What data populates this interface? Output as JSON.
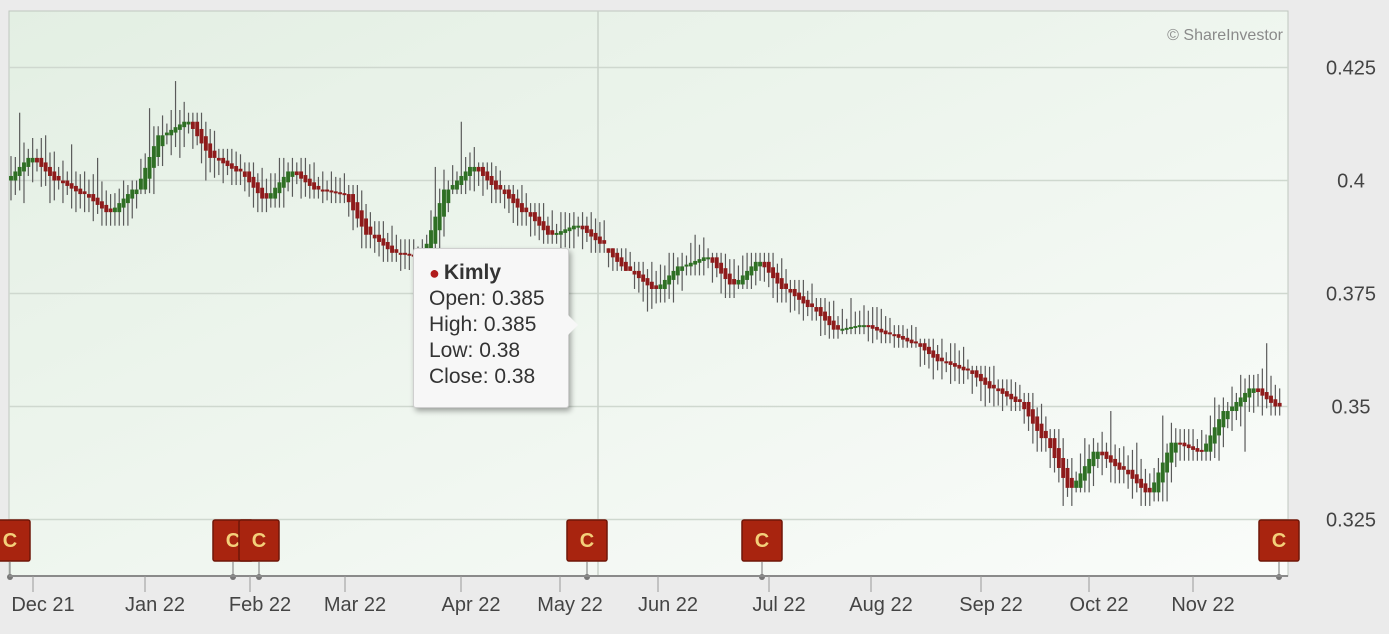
{
  "credit": "© ShareInvestor",
  "colors": {
    "up": "#2f6f24",
    "down": "#8e1b1b",
    "flag_fill": "#a8240f",
    "plot_bg": "#eef5ee"
  },
  "tooltip": {
    "name": "Kimly",
    "open_label": "Open: 0.385",
    "high_label": "High: 0.385",
    "low_label": "Low: 0.38",
    "close_label": "Close: 0.38"
  },
  "event_flags": [
    {
      "label": "C",
      "date": "Nov 21"
    },
    {
      "label": "C",
      "date": "Jan 22"
    },
    {
      "label": "C",
      "date": "Feb 22"
    },
    {
      "label": "C",
      "date": "May 22"
    },
    {
      "label": "C",
      "date": "Jul 22"
    },
    {
      "label": "C",
      "date": "Dec 22"
    }
  ],
  "chart_data": {
    "type": "ohlc",
    "title": "",
    "xlabel": "",
    "ylabel": "",
    "ylim": [
      0.3125,
      0.4375
    ],
    "y_ticks": [
      "0.325",
      "0.35",
      "0.375",
      "0.4",
      "0.425"
    ],
    "x_ticks": [
      "Dec 21",
      "Jan 22",
      "Feb 22",
      "Mar 22",
      "Apr 22",
      "May 22",
      "Jun 22",
      "Jul 22",
      "Aug 22",
      "Sep 22",
      "Oct 22",
      "Nov 22"
    ],
    "grid": true,
    "series": [
      {
        "points": [
          {
            "date": "Dec 21",
            "open": 0.4,
            "high": 0.415,
            "low": 0.395,
            "close": 0.405
          },
          {
            "date": "Dec 21",
            "open": 0.405,
            "high": 0.41,
            "low": 0.395,
            "close": 0.4
          },
          {
            "date": "Dec 21",
            "open": 0.4,
            "high": 0.408,
            "low": 0.393,
            "close": 0.397
          },
          {
            "date": "Jan 22",
            "open": 0.397,
            "high": 0.405,
            "low": 0.39,
            "close": 0.393
          },
          {
            "date": "Jan 22",
            "open": 0.393,
            "high": 0.4,
            "low": 0.39,
            "close": 0.398
          },
          {
            "date": "Jan 22",
            "open": 0.398,
            "high": 0.416,
            "low": 0.397,
            "close": 0.41
          },
          {
            "date": "Jan 22",
            "open": 0.41,
            "high": 0.422,
            "low": 0.405,
            "close": 0.413
          },
          {
            "date": "Jan 22",
            "open": 0.413,
            "high": 0.415,
            "low": 0.4,
            "close": 0.405
          },
          {
            "date": "Feb 22",
            "open": 0.405,
            "high": 0.407,
            "low": 0.399,
            "close": 0.402
          },
          {
            "date": "Feb 22",
            "open": 0.402,
            "high": 0.404,
            "low": 0.393,
            "close": 0.396
          },
          {
            "date": "Feb 22",
            "open": 0.396,
            "high": 0.405,
            "low": 0.394,
            "close": 0.402
          },
          {
            "date": "Feb 22",
            "open": 0.402,
            "high": 0.405,
            "low": 0.396,
            "close": 0.398
          },
          {
            "date": "Mar 22",
            "open": 0.398,
            "high": 0.402,
            "low": 0.395,
            "close": 0.397
          },
          {
            "date": "Mar 22",
            "open": 0.397,
            "high": 0.399,
            "low": 0.385,
            "close": 0.388
          },
          {
            "date": "Mar 22",
            "open": 0.388,
            "high": 0.391,
            "low": 0.382,
            "close": 0.384
          },
          {
            "date": "Mar 22",
            "open": 0.384,
            "high": 0.387,
            "low": 0.38,
            "close": 0.383
          },
          {
            "date": "Apr 22",
            "open": 0.383,
            "high": 0.403,
            "low": 0.38,
            "close": 0.398
          },
          {
            "date": "Apr 22",
            "open": 0.398,
            "high": 0.413,
            "low": 0.397,
            "close": 0.403
          },
          {
            "date": "Apr 22",
            "open": 0.403,
            "high": 0.404,
            "low": 0.395,
            "close": 0.398
          },
          {
            "date": "Apr 22",
            "open": 0.398,
            "high": 0.399,
            "low": 0.39,
            "close": 0.393
          },
          {
            "date": "May 22",
            "open": 0.393,
            "high": 0.395,
            "low": 0.386,
            "close": 0.388
          },
          {
            "date": "May 22",
            "open": 0.388,
            "high": 0.393,
            "low": 0.385,
            "close": 0.39
          },
          {
            "date": "May 22",
            "open": 0.39,
            "high": 0.393,
            "low": 0.384,
            "close": 0.386
          },
          {
            "date": "May 22",
            "open": 0.385,
            "high": 0.385,
            "low": 0.38,
            "close": 0.38
          },
          {
            "date": "Jun 22",
            "open": 0.38,
            "high": 0.382,
            "low": 0.371,
            "close": 0.376
          },
          {
            "date": "Jun 22",
            "open": 0.376,
            "high": 0.384,
            "low": 0.373,
            "close": 0.381
          },
          {
            "date": "Jun 22",
            "open": 0.381,
            "high": 0.388,
            "low": 0.379,
            "close": 0.383
          },
          {
            "date": "Jul 22",
            "open": 0.383,
            "high": 0.384,
            "low": 0.374,
            "close": 0.377
          },
          {
            "date": "Jul 22",
            "open": 0.377,
            "high": 0.384,
            "low": 0.376,
            "close": 0.382
          },
          {
            "date": "Jul 22",
            "open": 0.382,
            "high": 0.384,
            "low": 0.373,
            "close": 0.376
          },
          {
            "date": "Jul 22",
            "open": 0.376,
            "high": 0.378,
            "low": 0.369,
            "close": 0.372
          },
          {
            "date": "Aug 22",
            "open": 0.372,
            "high": 0.374,
            "low": 0.365,
            "close": 0.367
          },
          {
            "date": "Aug 22",
            "open": 0.367,
            "high": 0.374,
            "low": 0.366,
            "close": 0.368
          },
          {
            "date": "Aug 22",
            "open": 0.368,
            "high": 0.372,
            "low": 0.364,
            "close": 0.366
          },
          {
            "date": "Aug 22",
            "open": 0.366,
            "high": 0.368,
            "low": 0.363,
            "close": 0.364
          },
          {
            "date": "Sep 22",
            "open": 0.364,
            "high": 0.365,
            "low": 0.356,
            "close": 0.36
          },
          {
            "date": "Sep 22",
            "open": 0.36,
            "high": 0.364,
            "low": 0.355,
            "close": 0.358
          },
          {
            "date": "Sep 22",
            "open": 0.358,
            "high": 0.359,
            "low": 0.35,
            "close": 0.354
          },
          {
            "date": "Sep 22",
            "open": 0.354,
            "high": 0.356,
            "low": 0.349,
            "close": 0.351
          },
          {
            "date": "Oct 22",
            "open": 0.351,
            "high": 0.353,
            "low": 0.34,
            "close": 0.343
          },
          {
            "date": "Oct 22",
            "open": 0.343,
            "high": 0.345,
            "low": 0.328,
            "close": 0.332
          },
          {
            "date": "Oct 22",
            "open": 0.332,
            "high": 0.343,
            "low": 0.331,
            "close": 0.34
          },
          {
            "date": "Oct 22",
            "open": 0.34,
            "high": 0.349,
            "low": 0.333,
            "close": 0.336
          },
          {
            "date": "Nov 22",
            "open": 0.336,
            "high": 0.342,
            "low": 0.328,
            "close": 0.331
          },
          {
            "date": "Nov 22",
            "open": 0.331,
            "high": 0.348,
            "low": 0.329,
            "close": 0.342
          },
          {
            "date": "Nov 22",
            "open": 0.342,
            "high": 0.345,
            "low": 0.338,
            "close": 0.34
          },
          {
            "date": "Nov 22",
            "open": 0.34,
            "high": 0.352,
            "low": 0.338,
            "close": 0.349
          },
          {
            "date": "Dec 22",
            "open": 0.349,
            "high": 0.357,
            "low": 0.34,
            "close": 0.354
          },
          {
            "date": "Dec 22",
            "open": 0.354,
            "high": 0.364,
            "low": 0.348,
            "close": 0.35
          }
        ]
      }
    ]
  }
}
